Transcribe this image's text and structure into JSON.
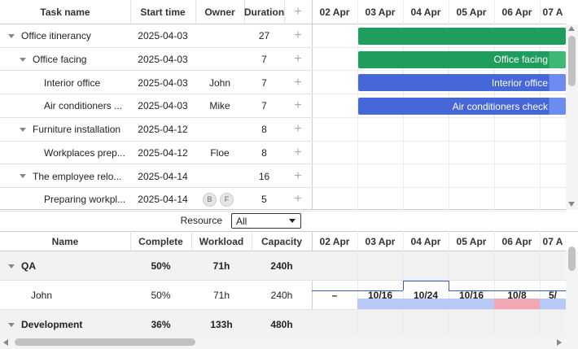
{
  "task_grid": {
    "columns": [
      "Task name",
      "Start time",
      "Owner",
      "Duration"
    ],
    "rows": [
      {
        "name": "Office itinerancy",
        "start": "2025-04-03",
        "duration": 27
      },
      {
        "name": "Office facing",
        "start": "2025-04-03",
        "duration": 7
      },
      {
        "name": "Interior office",
        "start": "2025-04-03",
        "owner": "John",
        "duration": 7
      },
      {
        "name": "Air conditioners ...",
        "start": "2025-04-03",
        "owner": "Mike",
        "duration": 7
      },
      {
        "name": "Furniture installation",
        "start": "2025-04-12",
        "duration": 8
      },
      {
        "name": "Workplaces prep...",
        "start": "2025-04-12",
        "owner": "Floe",
        "duration": 8
      },
      {
        "name": "The employee relo...",
        "start": "2025-04-14",
        "duration": 16
      },
      {
        "name": "Preparing workpl...",
        "start": "2025-04-14",
        "owners": [
          "B",
          "F"
        ],
        "duration": 5
      }
    ]
  },
  "timeline": {
    "scale": [
      "02 Apr",
      "03 Apr",
      "04 Apr",
      "05 Apr",
      "06 Apr",
      "07 A"
    ],
    "bar_labels": [
      "Office facing",
      "Interior office",
      "Air conditioners check"
    ]
  },
  "resource_filter": {
    "label": "Resource",
    "value": "All"
  },
  "resource_grid": {
    "columns": [
      "Name",
      "Complete",
      "Workload",
      "Capacity"
    ],
    "rows": [
      {
        "name": "QA",
        "complete": "50%",
        "workload": "71h",
        "capacity": "240h"
      },
      {
        "name": "John",
        "complete": "50%",
        "workload": "71h",
        "capacity": "240h"
      },
      {
        "name": "Development",
        "complete": "36%",
        "workload": "133h",
        "capacity": "480h"
      }
    ]
  },
  "resource_timeline": {
    "john": [
      "–",
      "10/16",
      "10/24",
      "10/16",
      "10/8",
      "5/"
    ]
  }
}
